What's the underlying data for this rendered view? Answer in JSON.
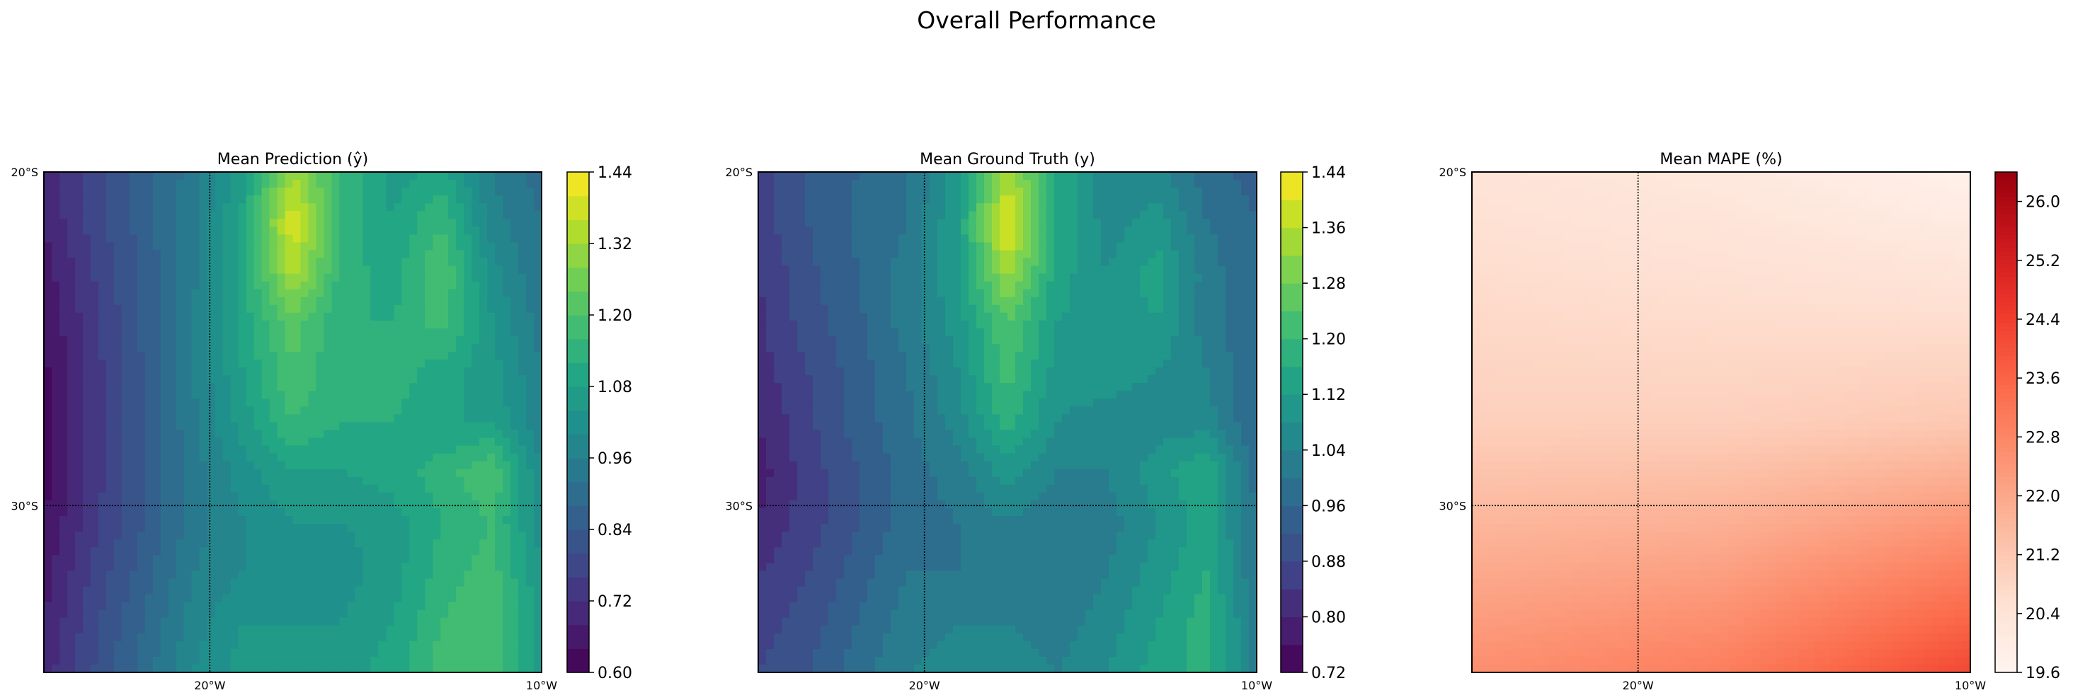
{
  "figure": {
    "suptitle": "Overall Performance"
  },
  "chart_data": [
    {
      "type": "heatmap",
      "title": "Mean Prediction (ŷ)",
      "x_tick_labels": [
        "20°W",
        "10°W"
      ],
      "y_tick_labels": [
        "20°S",
        "30°S"
      ],
      "extent": {
        "lon": [
          -25,
          -10
        ],
        "lat": [
          -35,
          -20
        ]
      },
      "gridlines": {
        "lon": [
          -20
        ],
        "lat": [
          -30
        ]
      },
      "colormap": "viridis",
      "colorbar": {
        "min": 0.6,
        "max": 1.44,
        "levels": 21,
        "ticks": [
          0.6,
          0.72,
          0.84,
          0.96,
          1.08,
          1.2,
          1.32,
          1.44
        ],
        "tick_labels": [
          "0.60",
          "0.72",
          "0.84",
          "0.96",
          "1.08",
          "1.20",
          "1.32",
          "1.44"
        ]
      },
      "field": {
        "lons": [
          -25,
          -23.5,
          -22,
          -20.5,
          -19,
          -17.5,
          -16,
          -14.5,
          -13,
          -11.5,
          -10
        ],
        "lats": [
          -20,
          -21.5,
          -23,
          -24.5,
          -26,
          -27.5,
          -29,
          -30.5,
          -32,
          -33.5,
          -35
        ],
        "values": [
          [
            0.7,
            0.78,
            0.86,
            0.94,
            1.06,
            1.32,
            1.16,
            1.06,
            1.1,
            0.96,
            0.9
          ],
          [
            0.68,
            0.78,
            0.86,
            0.95,
            1.1,
            1.4,
            1.14,
            1.08,
            1.16,
            0.98,
            0.92
          ],
          [
            0.66,
            0.76,
            0.85,
            0.95,
            1.1,
            1.34,
            1.14,
            1.1,
            1.2,
            1.02,
            0.92
          ],
          [
            0.64,
            0.75,
            0.85,
            0.96,
            1.1,
            1.22,
            1.12,
            1.12,
            1.18,
            1.04,
            0.94
          ],
          [
            0.63,
            0.74,
            0.84,
            0.96,
            1.08,
            1.2,
            1.12,
            1.14,
            1.1,
            1.06,
            0.96
          ],
          [
            0.62,
            0.74,
            0.84,
            0.95,
            1.06,
            1.16,
            1.12,
            1.12,
            1.08,
            1.08,
            0.96
          ],
          [
            0.62,
            0.74,
            0.84,
            0.94,
            1.02,
            1.08,
            1.08,
            1.1,
            1.14,
            1.2,
            1.0
          ],
          [
            0.64,
            0.75,
            0.84,
            0.94,
            1.0,
            1.04,
            1.04,
            1.06,
            1.12,
            1.16,
            1.02
          ],
          [
            0.66,
            0.77,
            0.86,
            0.96,
            1.0,
            1.04,
            1.02,
            1.06,
            1.14,
            1.18,
            1.04
          ],
          [
            0.68,
            0.79,
            0.88,
            0.98,
            1.04,
            1.04,
            1.04,
            1.08,
            1.16,
            1.2,
            1.06
          ],
          [
            0.7,
            0.8,
            0.9,
            1.0,
            1.06,
            1.08,
            1.06,
            1.1,
            1.18,
            1.2,
            1.06
          ]
        ]
      }
    },
    {
      "type": "heatmap",
      "title": "Mean Ground Truth (y)",
      "x_tick_labels": [
        "20°W",
        "10°W"
      ],
      "y_tick_labels": [
        "20°S",
        "30°S"
      ],
      "extent": {
        "lon": [
          -25,
          -10
        ],
        "lat": [
          -35,
          -20
        ]
      },
      "gridlines": {
        "lon": [
          -20
        ],
        "lat": [
          -30
        ]
      },
      "colormap": "viridis",
      "colorbar": {
        "min": 0.72,
        "max": 1.44,
        "levels": 18,
        "ticks": [
          0.72,
          0.8,
          0.88,
          0.96,
          1.04,
          1.12,
          1.2,
          1.28,
          1.36,
          1.44
        ],
        "tick_labels": [
          "0.72",
          "0.80",
          "0.88",
          "0.96",
          "1.04",
          "1.12",
          "1.20",
          "1.28",
          "1.36",
          "1.44"
        ]
      },
      "field": {
        "lons": [
          -25,
          -23.5,
          -22,
          -20.5,
          -19,
          -17.5,
          -16,
          -14.5,
          -13,
          -11.5,
          -10
        ],
        "lats": [
          -20,
          -21.5,
          -23,
          -24.5,
          -26,
          -27.5,
          -29,
          -30.5,
          -32,
          -33.5,
          -35
        ],
        "values": [
          [
            0.86,
            0.92,
            0.96,
            1.0,
            1.1,
            1.34,
            1.16,
            1.04,
            1.06,
            0.98,
            0.94
          ],
          [
            0.86,
            0.92,
            0.97,
            1.0,
            1.12,
            1.42,
            1.16,
            1.06,
            1.1,
            1.0,
            0.96
          ],
          [
            0.84,
            0.91,
            0.96,
            1.02,
            1.12,
            1.34,
            1.14,
            1.08,
            1.14,
            1.02,
            0.96
          ],
          [
            0.83,
            0.9,
            0.95,
            1.02,
            1.1,
            1.24,
            1.12,
            1.1,
            1.12,
            1.02,
            0.96
          ],
          [
            0.82,
            0.88,
            0.94,
            1.0,
            1.08,
            1.22,
            1.1,
            1.1,
            1.08,
            1.04,
            0.96
          ],
          [
            0.8,
            0.87,
            0.94,
            0.99,
            1.06,
            1.18,
            1.08,
            1.06,
            1.06,
            1.06,
            0.96
          ],
          [
            0.78,
            0.86,
            0.92,
            0.98,
            1.02,
            1.1,
            1.04,
            1.04,
            1.1,
            1.16,
            0.98
          ],
          [
            0.8,
            0.86,
            0.92,
            0.98,
            1.0,
            1.04,
            1.0,
            1.02,
            1.08,
            1.14,
            1.0
          ],
          [
            0.84,
            0.88,
            0.94,
            1.0,
            1.0,
            1.04,
            1.0,
            1.04,
            1.1,
            1.16,
            1.0
          ],
          [
            0.86,
            0.9,
            0.96,
            1.02,
            1.04,
            1.04,
            1.02,
            1.06,
            1.12,
            1.18,
            1.02
          ],
          [
            0.88,
            0.92,
            0.98,
            1.04,
            1.06,
            1.06,
            1.04,
            1.08,
            1.14,
            1.18,
            1.02
          ]
        ]
      }
    },
    {
      "type": "heatmap",
      "title": "Mean MAPE (%)",
      "x_tick_labels": [
        "20°W",
        "10°W"
      ],
      "y_tick_labels": [
        "20°S",
        "30°S"
      ],
      "extent": {
        "lon": [
          -25,
          -10
        ],
        "lat": [
          -35,
          -20
        ]
      },
      "gridlines": {
        "lon": [
          -20
        ],
        "lat": [
          -30
        ]
      },
      "colormap": "reds",
      "colorbar": {
        "min": 19.6,
        "max": 26.4,
        "ticks": [
          19.6,
          20.4,
          21.2,
          22.0,
          22.8,
          23.6,
          24.4,
          25.2,
          26.0
        ],
        "tick_labels": [
          "19.6",
          "20.4",
          "21.2",
          "22.0",
          "22.8",
          "23.6",
          "24.4",
          "25.2",
          "26.0"
        ]
      },
      "field": {
        "lons": [
          -25,
          -17.5,
          -10
        ],
        "lats": [
          -20,
          -27.5,
          -35
        ],
        "values": [
          [
            20.4,
            20.2,
            19.8
          ],
          [
            21.0,
            21.0,
            21.2
          ],
          [
            22.6,
            23.0,
            24.2
          ]
        ]
      }
    }
  ]
}
